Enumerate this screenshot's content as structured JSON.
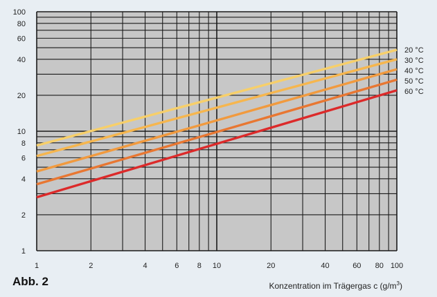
{
  "figure_label": "Abb. 2",
  "chart_data": {
    "type": "line",
    "title": "",
    "xlabel": "Konzentration im Trägergas c (g/m",
    "xlabel_superscript": "3",
    "xlabel_close": ")",
    "ylabel": "",
    "x_scale": "log",
    "y_scale": "log",
    "xlim": [
      1,
      100
    ],
    "ylim": [
      1,
      100
    ],
    "x_ticks": [
      1,
      2,
      4,
      6,
      8,
      10,
      20,
      40,
      60,
      80,
      100
    ],
    "x_tick_labels": [
      "1",
      "2",
      "4",
      "6",
      "8",
      "10",
      "20",
      "40",
      "60",
      "80",
      "100"
    ],
    "y_ticks": [
      1,
      2,
      4,
      6,
      8,
      10,
      20,
      40,
      60,
      80,
      100
    ],
    "y_tick_labels": [
      "1",
      "2",
      "4",
      "6",
      "8",
      "10",
      "20",
      "40",
      "60",
      "80",
      "100"
    ],
    "grid": true,
    "legend_placement": "right",
    "series": [
      {
        "name": "20 °C",
        "color": "#f7cf6a",
        "points": [
          [
            1,
            7.6
          ],
          [
            100,
            48
          ]
        ]
      },
      {
        "name": "30 °C",
        "color": "#f6b64e",
        "points": [
          [
            1,
            6.2
          ],
          [
            100,
            40
          ]
        ]
      },
      {
        "name": "40 °C",
        "color": "#f19a3e",
        "points": [
          [
            1,
            4.6
          ],
          [
            100,
            33
          ]
        ]
      },
      {
        "name": "50 °C",
        "color": "#e87732",
        "points": [
          [
            1,
            3.6
          ],
          [
            100,
            27
          ]
        ]
      },
      {
        "name": "60 °C",
        "color": "#dc2a2a",
        "points": [
          [
            1,
            2.8
          ],
          [
            100,
            22
          ]
        ]
      }
    ]
  }
}
